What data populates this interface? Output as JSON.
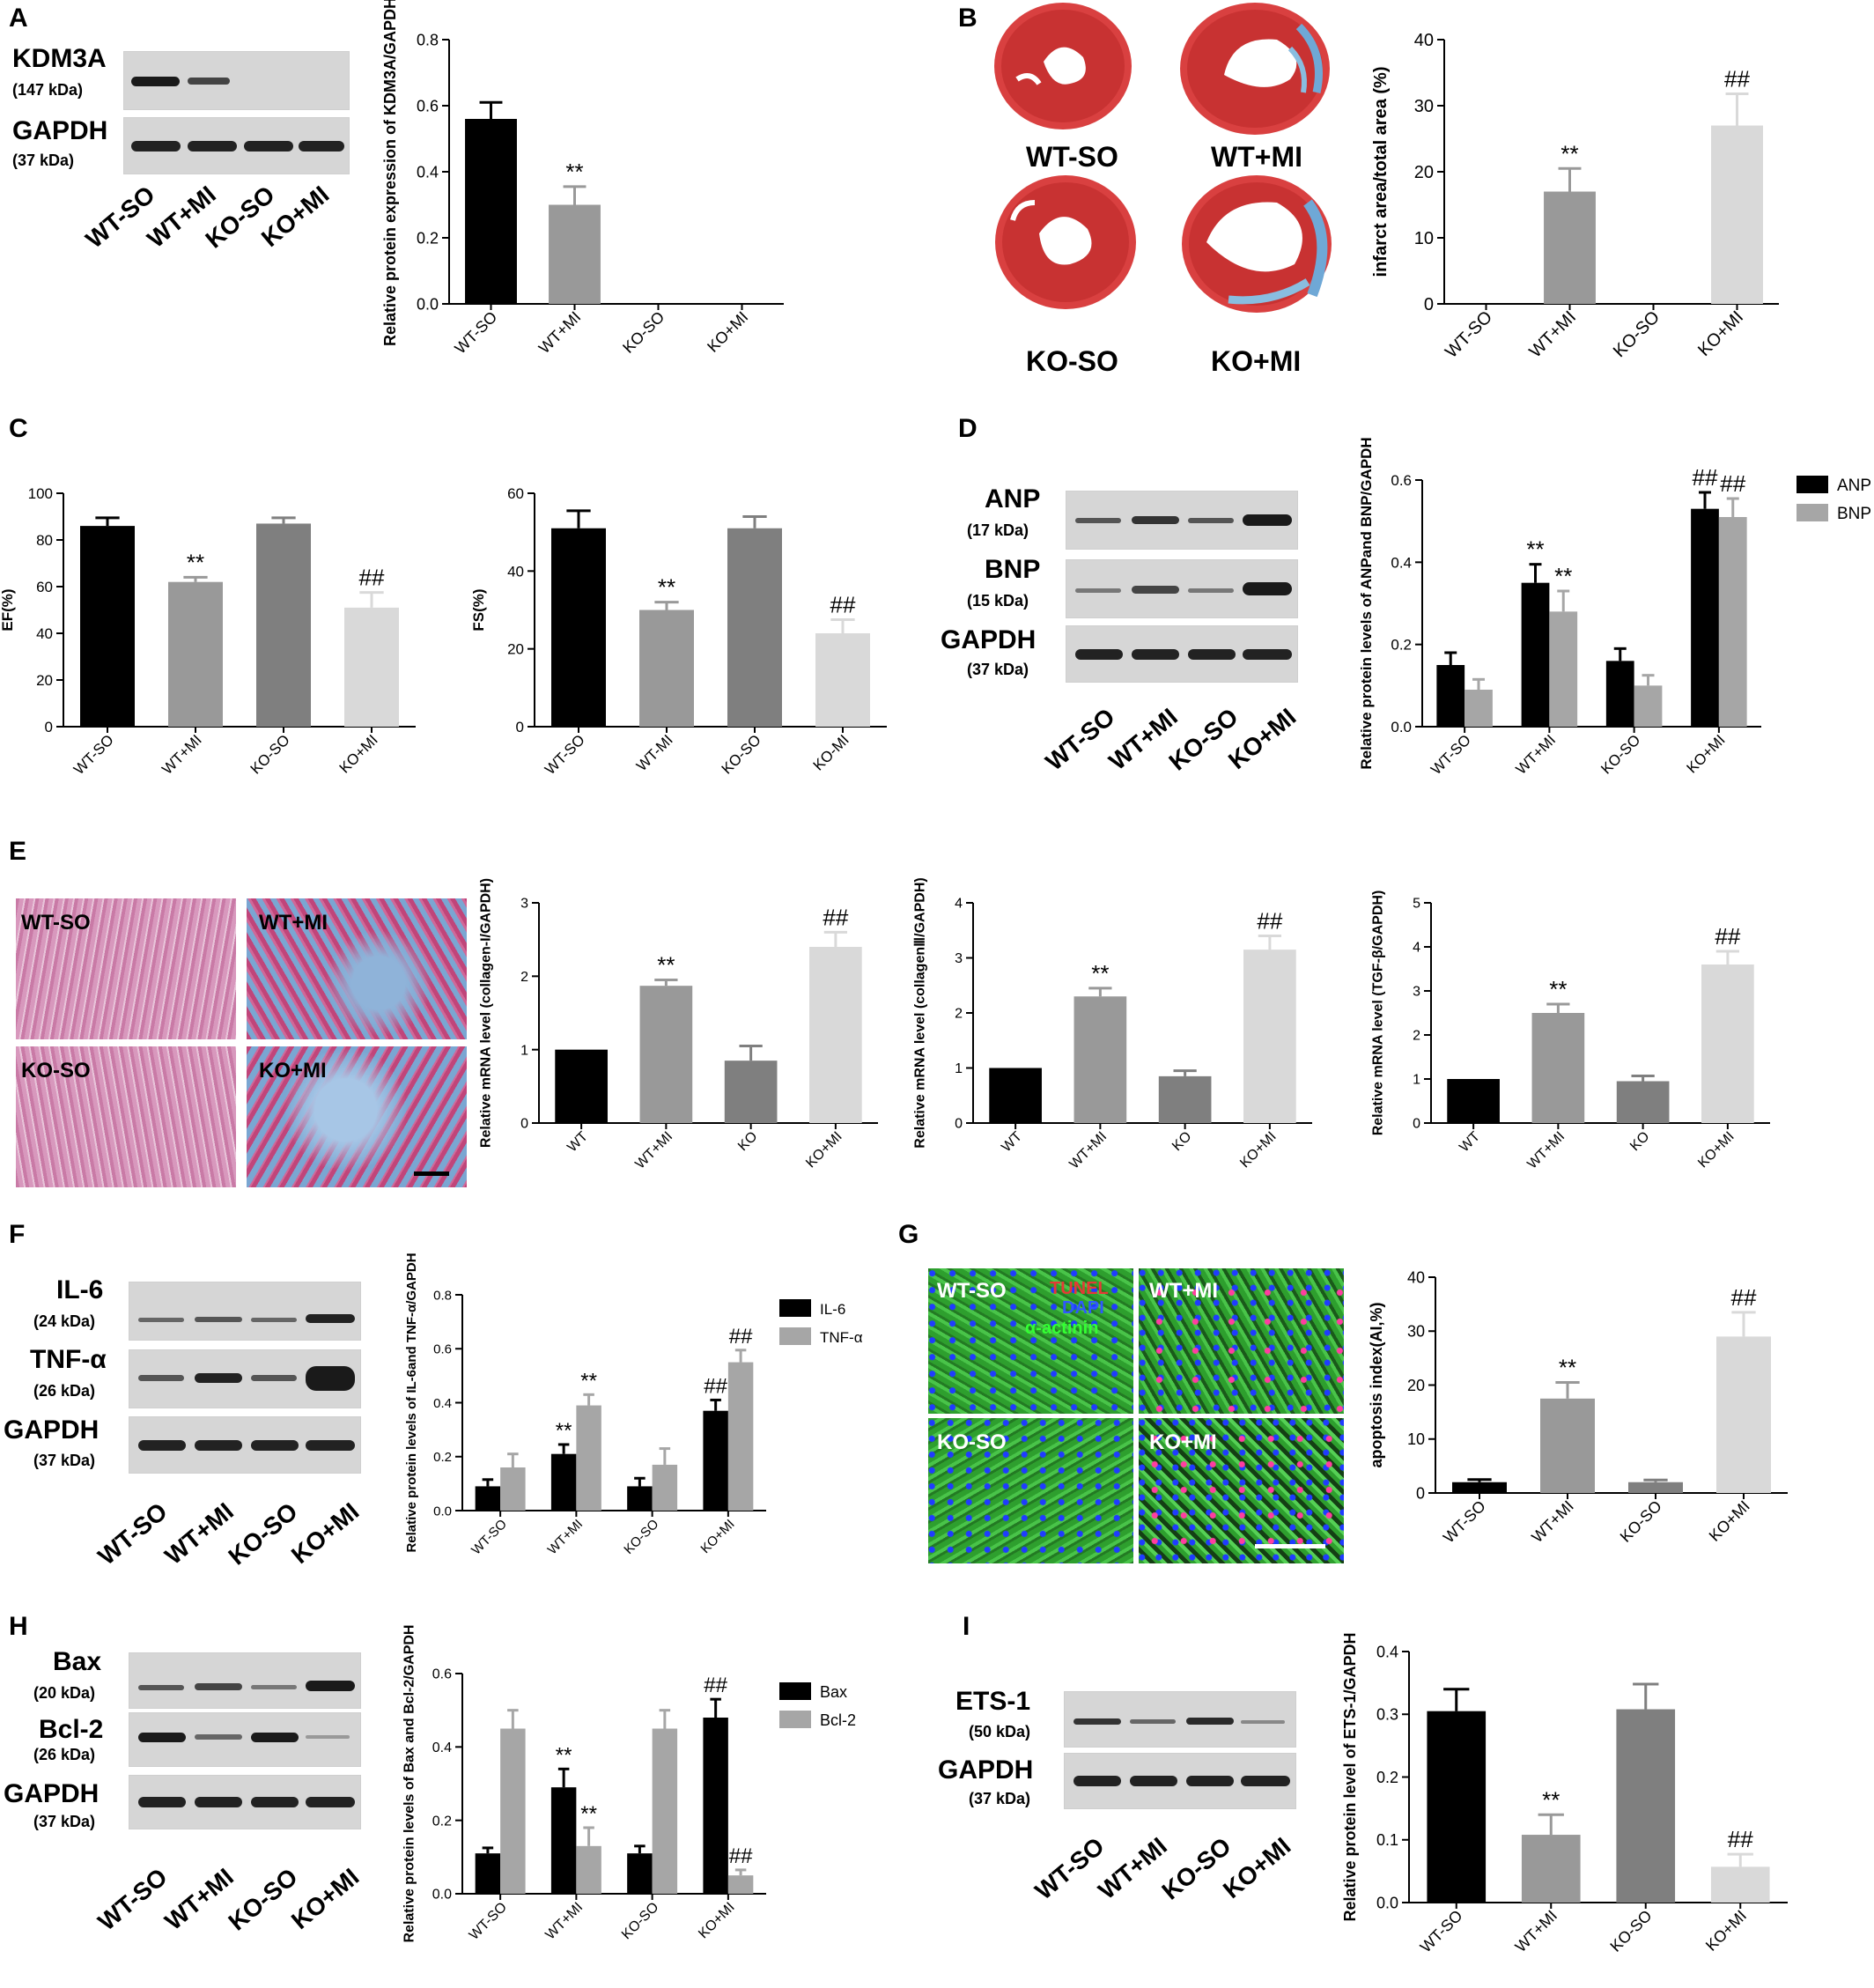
{
  "panels": {
    "A": {
      "label": "A",
      "blot": {
        "rows": [
          {
            "name": "KDM3A",
            "kda": "(147 kDa)"
          },
          {
            "name": "GAPDH",
            "kda": "(37 kDa)"
          }
        ],
        "lanes": [
          "WT-SO",
          "WT+MI",
          "KO-SO",
          "KO+MI"
        ]
      }
    },
    "B": {
      "label": "B",
      "hearts": [
        "WT-SO",
        "WT+MI",
        "KO-SO",
        "KO+MI"
      ]
    },
    "C": {
      "label": "C"
    },
    "D": {
      "label": "D",
      "blot": {
        "rows": [
          {
            "name": "ANP",
            "kda": "(17 kDa)"
          },
          {
            "name": "BNP",
            "kda": "(15 kDa)"
          },
          {
            "name": "GAPDH",
            "kda": "(37 kDa)"
          }
        ],
        "lanes": [
          "WT-SO",
          "WT+MI",
          "KO-SO",
          "KO+MI"
        ]
      }
    },
    "E": {
      "label": "E",
      "histology": [
        "WT-SO",
        "WT+MI",
        "KO-SO",
        "KO+MI"
      ]
    },
    "F": {
      "label": "F",
      "blot": {
        "rows": [
          {
            "name": "IL-6",
            "kda": "(24 kDa)"
          },
          {
            "name": "TNF-α",
            "kda": "(26 kDa)"
          },
          {
            "name": "GAPDH",
            "kda": "(37 kDa)"
          }
        ],
        "lanes": [
          "WT-SO",
          "WT+MI",
          "KO-SO",
          "KO+MI"
        ]
      }
    },
    "G": {
      "label": "G",
      "fluor": [
        "WT-SO",
        "WT+MI",
        "KO-SO",
        "KO+MI"
      ],
      "stains": [
        "TUNEL",
        "DAPI",
        "α-actinin"
      ]
    },
    "H": {
      "label": "H",
      "blot": {
        "rows": [
          {
            "name": "Bax",
            "kda": "(20 kDa)"
          },
          {
            "name": "Bcl-2",
            "kda": "(26 kDa)"
          },
          {
            "name": "GAPDH",
            "kda": "(37 kDa)"
          }
        ],
        "lanes": [
          "WT-SO",
          "WT+MI",
          "KO-SO",
          "KO+MI"
        ]
      }
    },
    "I": {
      "label": "I",
      "blot": {
        "rows": [
          {
            "name": "ETS-1",
            "kda": "(50 kDa)"
          },
          {
            "name": "GAPDH",
            "kda": "(37 kDa)"
          }
        ],
        "lanes": [
          "WT-SO",
          "WT+MI",
          "KO-SO",
          "KO+MI"
        ]
      }
    }
  },
  "colors": {
    "black": "#000000",
    "midgray": "#999999",
    "darkgray": "#7f7f7f",
    "lightgray": "#d9d9d9",
    "legendgray": "#a6a6a6",
    "tunel": "#e53935",
    "dapi": "#2f57ff",
    "actinin": "#33ff33"
  },
  "chart_data": [
    {
      "id": "A",
      "type": "bar",
      "categories": [
        "WT-SO",
        "WT+MI",
        "KO-SO",
        "KO+MI"
      ],
      "values": [
        0.56,
        0.3,
        0,
        0
      ],
      "errors": [
        0.05,
        0.055,
        0,
        0
      ],
      "annotations": [
        "",
        "**",
        "",
        ""
      ],
      "ylabel": "Relative protein expression of KDM3A/GAPDH",
      "ylim": [
        0,
        0.8
      ],
      "yticks": [
        "0.0",
        "0.2",
        "0.4",
        "0.6",
        "0.8"
      ],
      "colors": [
        "#000000",
        "#999999",
        "#7f7f7f",
        "#d9d9d9"
      ]
    },
    {
      "id": "B",
      "type": "bar",
      "categories": [
        "WT-SO",
        "WT+MI",
        "KO-SO",
        "KO+MI"
      ],
      "values": [
        0,
        17,
        0,
        27
      ],
      "errors": [
        0,
        3.5,
        0,
        4.8
      ],
      "annotations": [
        "",
        "**",
        "",
        "##"
      ],
      "ylabel": "infarct area/total area (%)",
      "ylim": [
        0,
        40
      ],
      "yticks": [
        "0",
        "10",
        "20",
        "30",
        "40"
      ],
      "colors": [
        "#000000",
        "#999999",
        "#7f7f7f",
        "#d9d9d9"
      ]
    },
    {
      "id": "C1",
      "type": "bar",
      "categories": [
        "WT-SO",
        "WT+MI",
        "KO-SO",
        "KO+MI"
      ],
      "values": [
        86,
        62,
        87,
        51
      ],
      "errors": [
        3.5,
        2,
        2.5,
        6.5
      ],
      "annotations": [
        "",
        "**",
        "",
        "##"
      ],
      "ylabel": "EF(%)",
      "ylim": [
        0,
        100
      ],
      "yticks": [
        "0",
        "20",
        "40",
        "60",
        "80",
        "100"
      ],
      "colors": [
        "#000000",
        "#999999",
        "#7f7f7f",
        "#d9d9d9"
      ]
    },
    {
      "id": "C2",
      "type": "bar",
      "categories": [
        "WT-SO",
        "WT-MI",
        "KO-SO",
        "KO-MI"
      ],
      "values": [
        51,
        30,
        51,
        24
      ],
      "errors": [
        4.5,
        2,
        3,
        3.5
      ],
      "annotations": [
        "",
        "**",
        "",
        "##"
      ],
      "ylabel": "FS(%)",
      "ylim": [
        0,
        60
      ],
      "yticks": [
        "0",
        "20",
        "40",
        "60"
      ],
      "colors": [
        "#000000",
        "#999999",
        "#7f7f7f",
        "#d9d9d9"
      ]
    },
    {
      "id": "D",
      "type": "bar",
      "categories": [
        "WT-SO",
        "WT+MI",
        "KO-SO",
        "KO+MI"
      ],
      "series": [
        {
          "name": "ANP",
          "values": [
            0.15,
            0.35,
            0.16,
            0.53
          ],
          "errors": [
            0.03,
            0.045,
            0.03,
            0.04
          ],
          "annotations": [
            "",
            "**",
            "",
            "##"
          ],
          "color": "#000000"
        },
        {
          "name": "BNP",
          "values": [
            0.09,
            0.28,
            0.1,
            0.51
          ],
          "errors": [
            0.025,
            0.05,
            0.025,
            0.045
          ],
          "annotations": [
            "",
            "**",
            "",
            "##"
          ],
          "color": "#a6a6a6"
        }
      ],
      "ylabel": "Relative protein levels of ANPand BNP/GAPDH",
      "ylim": [
        0,
        0.6
      ],
      "yticks": [
        "0.0",
        "0.2",
        "0.4",
        "0.6"
      ],
      "legend": "right"
    },
    {
      "id": "E1",
      "type": "bar",
      "categories": [
        "WT",
        "WT+MI",
        "KO",
        "KO+MI"
      ],
      "values": [
        1.0,
        1.87,
        0.85,
        2.4
      ],
      "errors": [
        0,
        0.08,
        0.2,
        0.2
      ],
      "annotations": [
        "",
        "**",
        "",
        "##"
      ],
      "ylabel": "Relative mRNA level (collagen-I/GAPDH)",
      "ylim": [
        0,
        3
      ],
      "yticks": [
        "0",
        "1",
        "2",
        "3"
      ],
      "colors": [
        "#000000",
        "#999999",
        "#7f7f7f",
        "#d9d9d9"
      ]
    },
    {
      "id": "E2",
      "type": "bar",
      "categories": [
        "WT",
        "WT+MI",
        "KO",
        "KO+MI"
      ],
      "values": [
        1.0,
        2.3,
        0.85,
        3.15
      ],
      "errors": [
        0,
        0.15,
        0.1,
        0.25
      ],
      "annotations": [
        "",
        "**",
        "",
        "##"
      ],
      "ylabel": "Relative mRNA level (collagenⅢ/GAPDH)",
      "ylim": [
        0,
        4
      ],
      "yticks": [
        "0",
        "1",
        "2",
        "3",
        "4"
      ],
      "colors": [
        "#000000",
        "#999999",
        "#7f7f7f",
        "#d9d9d9"
      ]
    },
    {
      "id": "E3",
      "type": "bar",
      "categories": [
        "WT",
        "WT+MI",
        "KO",
        "KO+MI"
      ],
      "values": [
        1.0,
        2.5,
        0.95,
        3.6
      ],
      "errors": [
        0,
        0.2,
        0.12,
        0.3
      ],
      "annotations": [
        "",
        "**",
        "",
        "##"
      ],
      "ylabel": "Relative mRNA level (TGF-β/GAPDH)",
      "ylim": [
        0,
        5
      ],
      "yticks": [
        "0",
        "1",
        "2",
        "3",
        "4",
        "5"
      ],
      "colors": [
        "#000000",
        "#999999",
        "#7f7f7f",
        "#d9d9d9"
      ]
    },
    {
      "id": "F",
      "type": "bar",
      "categories": [
        "WT-SO",
        "WT+MI",
        "KO-SO",
        "KO+MI"
      ],
      "series": [
        {
          "name": "IL-6",
          "values": [
            0.09,
            0.21,
            0.09,
            0.37
          ],
          "errors": [
            0.025,
            0.035,
            0.03,
            0.04
          ],
          "annotations": [
            "",
            "**",
            "",
            "##"
          ],
          "color": "#000000"
        },
        {
          "name": "TNF-α",
          "values": [
            0.16,
            0.39,
            0.17,
            0.55
          ],
          "errors": [
            0.05,
            0.04,
            0.06,
            0.045
          ],
          "annotations": [
            "",
            "**",
            "",
            "##"
          ],
          "color": "#a6a6a6"
        }
      ],
      "ylabel": "Relative protein levels of IL-6and TNF-α/GAPDH",
      "ylim": [
        0,
        0.8
      ],
      "yticks": [
        "0.0",
        "0.2",
        "0.4",
        "0.6",
        "0.8"
      ],
      "legend": "right"
    },
    {
      "id": "G",
      "type": "bar",
      "categories": [
        "WT-SO",
        "WT+MI",
        "KO-SO",
        "KO+MI"
      ],
      "values": [
        2,
        17.5,
        2,
        29
      ],
      "errors": [
        0.5,
        3,
        0.4,
        4.5
      ],
      "annotations": [
        "",
        "**",
        "",
        "##"
      ],
      "ylabel": "apoptosis index(AI,%)",
      "ylim": [
        0,
        40
      ],
      "yticks": [
        "0",
        "10",
        "20",
        "30",
        "40"
      ],
      "colors": [
        "#000000",
        "#999999",
        "#7f7f7f",
        "#d9d9d9"
      ]
    },
    {
      "id": "H",
      "type": "bar",
      "categories": [
        "WT-SO",
        "WT+MI",
        "KO-SO",
        "KO+MI"
      ],
      "series": [
        {
          "name": "Bax",
          "values": [
            0.11,
            0.29,
            0.11,
            0.48
          ],
          "errors": [
            0.015,
            0.05,
            0.02,
            0.05
          ],
          "annotations": [
            "",
            "**",
            "",
            "##"
          ],
          "color": "#000000"
        },
        {
          "name": "Bcl-2",
          "values": [
            0.45,
            0.13,
            0.45,
            0.05
          ],
          "errors": [
            0.05,
            0.05,
            0.05,
            0.015
          ],
          "annotations": [
            "",
            "**",
            "",
            "##"
          ],
          "color": "#a6a6a6"
        }
      ],
      "ylabel": "Relative protein levels of Bax and Bcl-2/GAPDH",
      "ylim": [
        0,
        0.6
      ],
      "yticks": [
        "0.0",
        "0.2",
        "0.4",
        "0.6"
      ],
      "legend": "right"
    },
    {
      "id": "I",
      "type": "bar",
      "categories": [
        "WT-SO",
        "WT+MI",
        "KO-SO",
        "KO+MI"
      ],
      "values": [
        0.305,
        0.108,
        0.308,
        0.057
      ],
      "errors": [
        0.035,
        0.032,
        0.04,
        0.02
      ],
      "annotations": [
        "",
        "**",
        "",
        "##"
      ],
      "ylabel": "Relative protein level of ETS-1/GAPDH",
      "ylim": [
        0,
        0.4
      ],
      "yticks": [
        "0.0",
        "0.1",
        "0.2",
        "0.3",
        "0.4"
      ],
      "colors": [
        "#000000",
        "#999999",
        "#7f7f7f",
        "#d9d9d9"
      ]
    }
  ]
}
